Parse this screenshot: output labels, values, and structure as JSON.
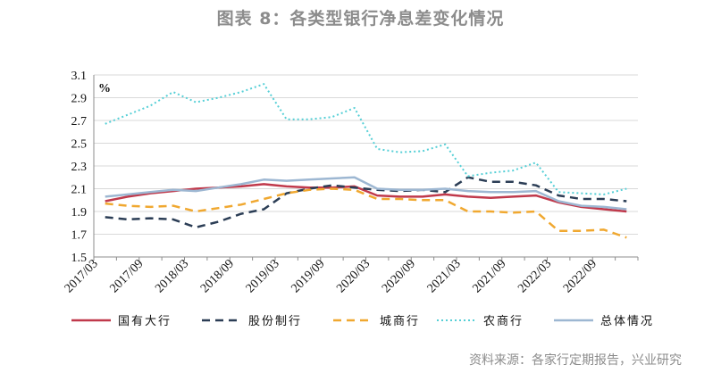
{
  "header": {
    "title": "图表 8：各类型银行净息差变化情况",
    "source": "资料来源：各家行定期报告，兴业研究"
  },
  "chart_data": {
    "type": "line",
    "unit_label": "%",
    "ylim": [
      1.5,
      3.1
    ],
    "yticks": [
      "3.1",
      "2.9",
      "2.7",
      "2.5",
      "2.3",
      "2.1",
      "1.9",
      "1.7",
      "1.5"
    ],
    "x": [
      "2017/03",
      "2017/06",
      "2017/09",
      "2017/12",
      "2018/03",
      "2018/06",
      "2018/09",
      "2018/12",
      "2019/03",
      "2019/06",
      "2019/09",
      "2019/12",
      "2020/03",
      "2020/06",
      "2020/09",
      "2020/12",
      "2021/03",
      "2021/06",
      "2021/09",
      "2021/12",
      "2022/03",
      "2022/06",
      "2022/09",
      "2022/12"
    ],
    "xtick_labels": [
      "2017/03",
      "2017/09",
      "2018/03",
      "2018/09",
      "2019/03",
      "2019/09",
      "2020/03",
      "2020/09",
      "2021/03",
      "2021/09",
      "2022/03",
      "2022/09"
    ],
    "grid": true,
    "legend_position": "bottom",
    "series": [
      {
        "name": "国有大行",
        "color": "#c0394b",
        "dash": "solid",
        "values": [
          1.99,
          2.03,
          2.06,
          2.08,
          2.1,
          2.11,
          2.12,
          2.14,
          2.12,
          2.11,
          2.11,
          2.12,
          2.04,
          2.03,
          2.03,
          2.05,
          2.03,
          2.02,
          2.03,
          2.04,
          1.98,
          1.94,
          1.92,
          1.9
        ]
      },
      {
        "name": "股份制行",
        "color": "#2b3d55",
        "dash": "dashed",
        "values": [
          1.85,
          1.83,
          1.84,
          1.83,
          1.76,
          1.81,
          1.88,
          1.92,
          2.06,
          2.1,
          2.13,
          2.11,
          2.09,
          2.08,
          2.09,
          2.07,
          2.2,
          2.16,
          2.16,
          2.13,
          2.04,
          2.01,
          2.01,
          1.99
        ]
      },
      {
        "name": "城商行",
        "color": "#f0a830",
        "dash": "dashed",
        "values": [
          1.97,
          1.95,
          1.94,
          1.95,
          1.9,
          1.93,
          1.96,
          2.01,
          2.06,
          2.09,
          2.1,
          2.09,
          2.01,
          2.01,
          2.0,
          2.0,
          1.9,
          1.9,
          1.89,
          1.9,
          1.73,
          1.73,
          1.74,
          1.67
        ]
      },
      {
        "name": "农商行",
        "color": "#55cfd6",
        "dash": "dotted",
        "values": [
          2.67,
          2.75,
          2.83,
          2.95,
          2.86,
          2.9,
          2.95,
          3.02,
          2.71,
          2.71,
          2.73,
          2.81,
          2.45,
          2.42,
          2.43,
          2.49,
          2.21,
          2.24,
          2.26,
          2.33,
          2.07,
          2.06,
          2.05,
          2.1
        ]
      },
      {
        "name": "总体情况",
        "color": "#9db7d2",
        "dash": "solid",
        "values": [
          2.03,
          2.05,
          2.07,
          2.09,
          2.08,
          2.11,
          2.14,
          2.18,
          2.17,
          2.18,
          2.19,
          2.2,
          2.1,
          2.09,
          2.09,
          2.1,
          2.08,
          2.07,
          2.07,
          2.08,
          1.99,
          1.95,
          1.94,
          1.92
        ]
      }
    ]
  }
}
